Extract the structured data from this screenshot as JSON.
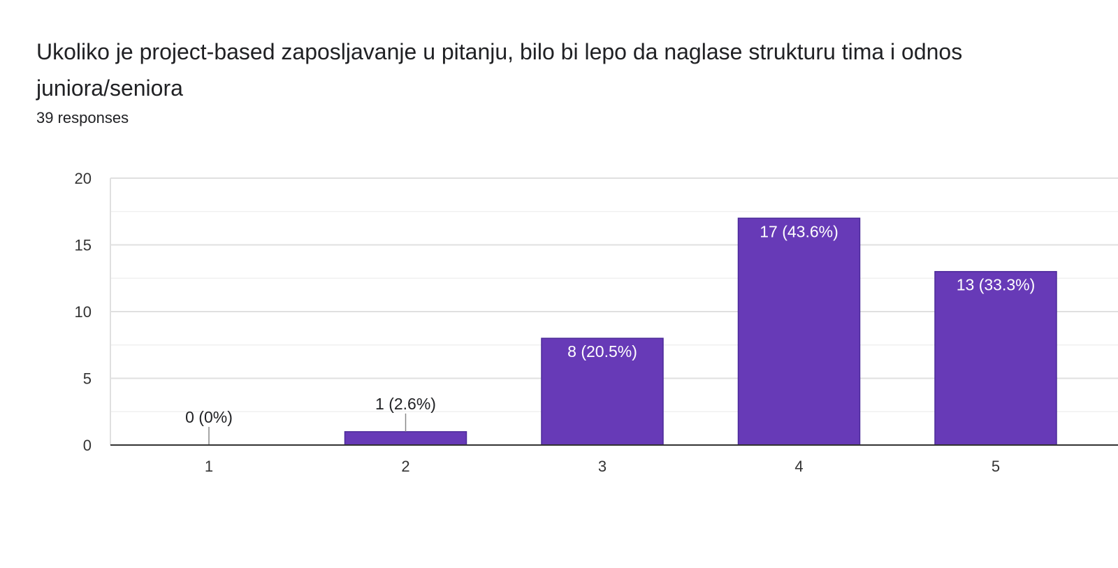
{
  "title": "Ukoliko je project-based zaposljavanje u pitanju, bilo bi lepo da naglase strukturu tima i odnos juniora/seniora",
  "responses": "39 responses",
  "colors": {
    "bar": "#673ab7",
    "bar_border": "#4b2a99",
    "grid": "#e6e6e6",
    "axis": "#333333",
    "label_dark": "#202124",
    "label_light": "#ffffff"
  },
  "chart_data": {
    "type": "bar",
    "categories": [
      "1",
      "2",
      "3",
      "4",
      "5"
    ],
    "values": [
      0,
      1,
      8,
      17,
      13
    ],
    "data_labels": [
      "0 (0%)",
      "1 (2.6%)",
      "8 (20.5%)",
      "17 (43.6%)",
      "13 (33.3%)"
    ],
    "ylim": [
      0,
      20
    ],
    "yticks": [
      "0",
      "5",
      "10",
      "15",
      "20"
    ],
    "xlabel": "",
    "ylabel": "",
    "grid": true
  }
}
